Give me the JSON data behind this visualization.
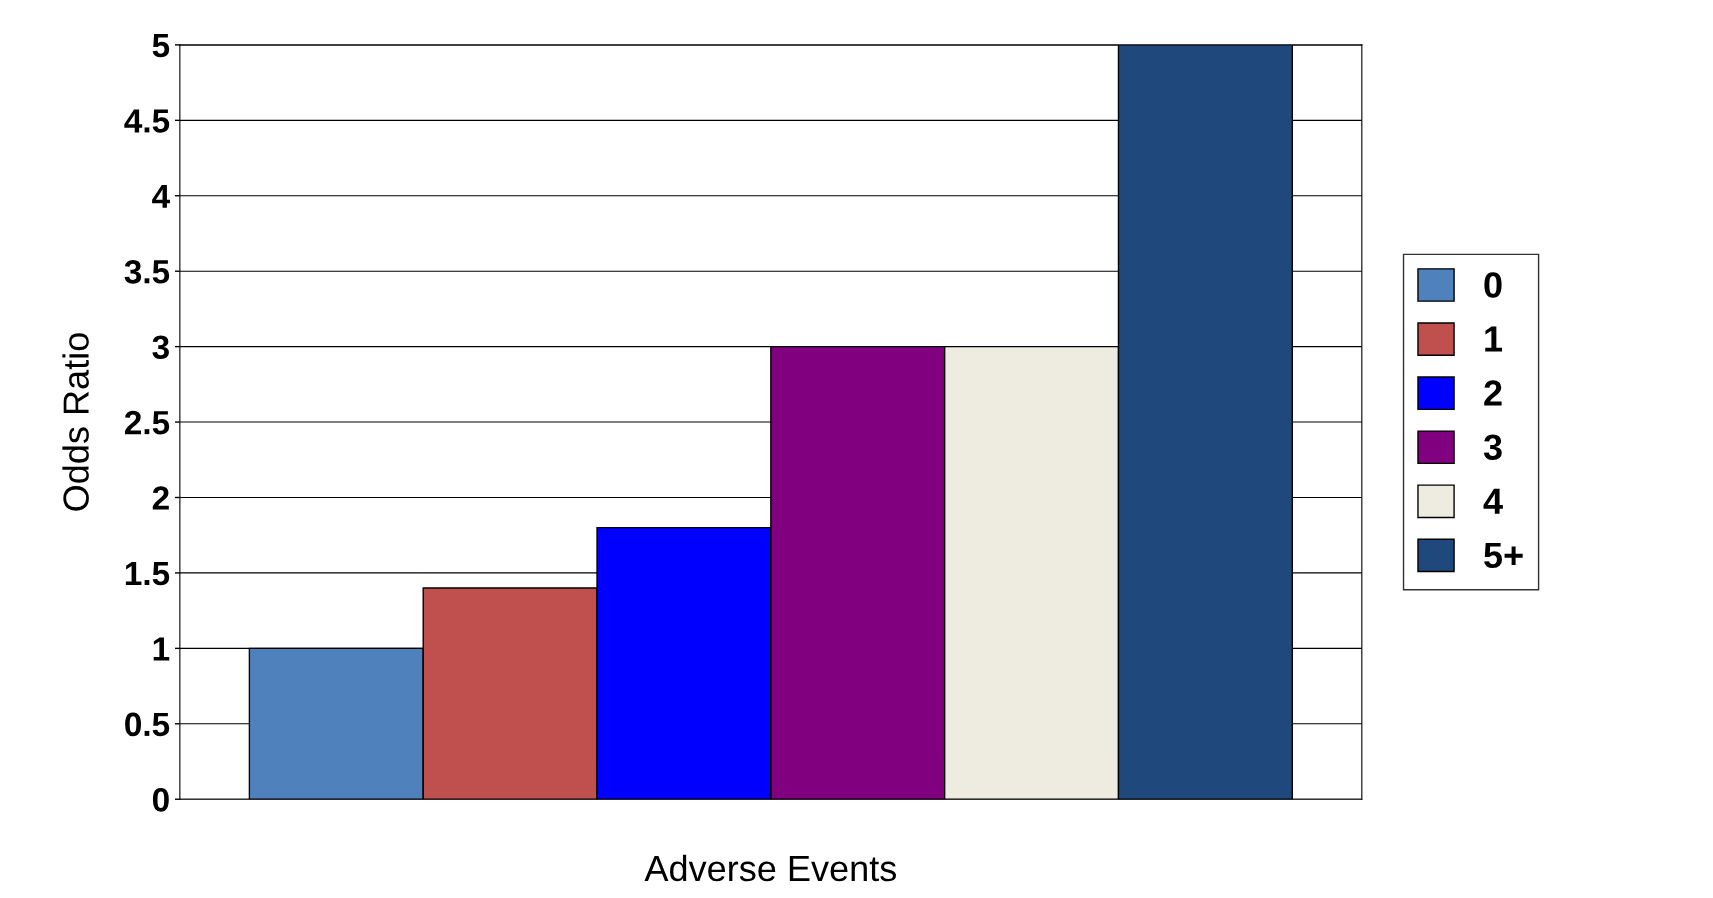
{
  "chart_data": {
    "type": "bar",
    "xlabel": "Adverse Events",
    "ylabel": "Odds Ratio",
    "categories": [
      null,
      null,
      null,
      null,
      null,
      null
    ],
    "series": [
      {
        "name": "0",
        "color": "#4f81bd",
        "values": [
          1.0,
          null,
          null,
          null,
          null,
          null
        ]
      },
      {
        "name": "1",
        "color": "#c0504d",
        "values": [
          null,
          1.4,
          null,
          null,
          null,
          null
        ]
      },
      {
        "name": "2",
        "color": "#0000ff",
        "values": [
          null,
          null,
          1.8,
          null,
          null,
          null
        ]
      },
      {
        "name": "3",
        "color": "#800080",
        "values": [
          null,
          null,
          null,
          3.0,
          null,
          null
        ]
      },
      {
        "name": "4",
        "color": "#eeece1",
        "values": [
          null,
          null,
          null,
          null,
          3.0,
          null
        ]
      },
      {
        "name": "5+",
        "color": "#1f497d",
        "values": [
          null,
          null,
          null,
          null,
          null,
          5.0
        ]
      }
    ],
    "ylim": [
      0,
      5
    ],
    "yticks": [
      0,
      0.5,
      1,
      1.5,
      2,
      2.5,
      3,
      3.5,
      4,
      4.5,
      5
    ],
    "grid": "y",
    "legend": "right",
    "tick_labels": "y"
  }
}
